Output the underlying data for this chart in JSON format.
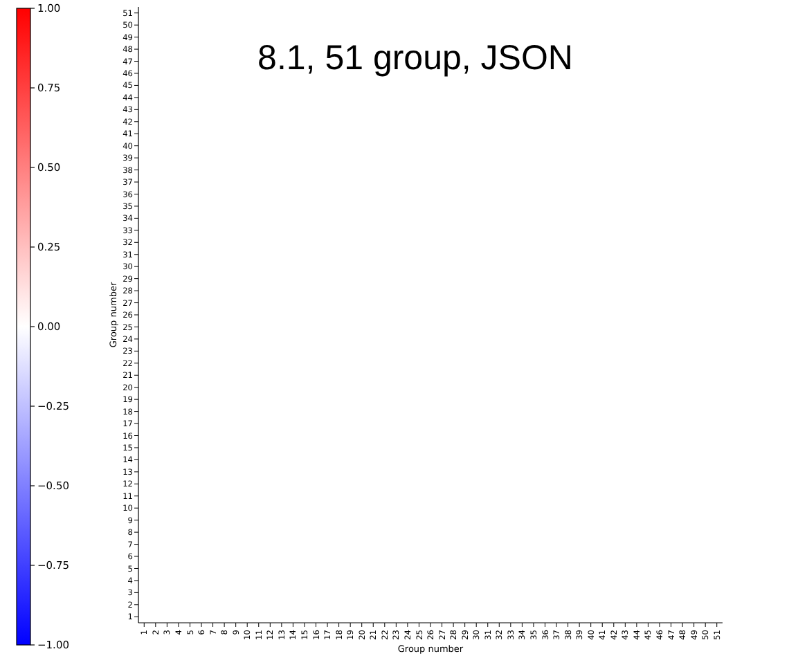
{
  "chart_data": {
    "type": "heatmap",
    "title": "8.1, 51 group, JSON",
    "xlabel": "Group number",
    "ylabel": "Group number",
    "categories": [
      "1",
      "2",
      "3",
      "4",
      "5",
      "6",
      "7",
      "8",
      "9",
      "10",
      "11",
      "12",
      "13",
      "14",
      "15",
      "16",
      "17",
      "18",
      "19",
      "20",
      "21",
      "22",
      "23",
      "24",
      "25",
      "26",
      "27",
      "28",
      "29",
      "30",
      "31",
      "32",
      "33",
      "34",
      "35",
      "36",
      "37",
      "38",
      "39",
      "40",
      "41",
      "42",
      "43",
      "44",
      "45",
      "46",
      "47",
      "48",
      "49",
      "50",
      "51"
    ],
    "y_categories": [
      "51",
      "50",
      "49",
      "48",
      "47",
      "46",
      "45",
      "44",
      "43",
      "42",
      "41",
      "40",
      "39",
      "38",
      "37",
      "36",
      "35",
      "34",
      "33",
      "32",
      "31",
      "30",
      "29",
      "28",
      "27",
      "26",
      "25",
      "24",
      "23",
      "22",
      "21",
      "20",
      "19",
      "18",
      "17",
      "16",
      "15",
      "14",
      "13",
      "12",
      "11",
      "10",
      "9",
      "8",
      "7",
      "6",
      "5",
      "4",
      "3",
      "2",
      "1"
    ],
    "clim": [
      -1,
      1
    ],
    "cticks": [
      {
        "value": 1,
        "label": "1.00"
      },
      {
        "value": 0.75,
        "label": "0.75"
      },
      {
        "value": 0.5,
        "label": "0.50"
      },
      {
        "value": 0.25,
        "label": "0.25"
      },
      {
        "value": 0,
        "label": "0.00"
      },
      {
        "value": -0.25,
        "label": "−0.25"
      },
      {
        "value": -0.5,
        "label": "−0.50"
      },
      {
        "value": -0.75,
        "label": "−0.75"
      },
      {
        "value": -1,
        "label": "−1.00"
      }
    ],
    "cells": [
      [
        0,
        0,
        0,
        0,
        0,
        0,
        0,
        0,
        0,
        0,
        0,
        0,
        0,
        0,
        0,
        0,
        0,
        0,
        0,
        0,
        0,
        0,
        0,
        0,
        0,
        0,
        0,
        0,
        0,
        0,
        0,
        0,
        0,
        0,
        0,
        0,
        0,
        0,
        0,
        0,
        0,
        0,
        0,
        0,
        0,
        0,
        0,
        0,
        0,
        0,
        0
      ],
      [
        0,
        0,
        0,
        0,
        0,
        0,
        0,
        0,
        0,
        0,
        0,
        0,
        0,
        0,
        0,
        0,
        0,
        0,
        0,
        0,
        0,
        0,
        0,
        0,
        0,
        0,
        0,
        0,
        0,
        0,
        0,
        0,
        0,
        0,
        0,
        0,
        0,
        0,
        0,
        0,
        0,
        0,
        0,
        0,
        0,
        0,
        0,
        0,
        0,
        0,
        0
      ],
      [
        0,
        0,
        0,
        0,
        0,
        0,
        0,
        0,
        0,
        0,
        0,
        0,
        0,
        0,
        0,
        0,
        0,
        0,
        0,
        0,
        0,
        0,
        0,
        0,
        0,
        0,
        0,
        0,
        0,
        0,
        0,
        0,
        0,
        0,
        0,
        0,
        0,
        0,
        0,
        0,
        0,
        0,
        0,
        0,
        0,
        0,
        0,
        0,
        0,
        0,
        0
      ],
      [
        0,
        0,
        0,
        0,
        0,
        0,
        0,
        0,
        0,
        0,
        0,
        0,
        0,
        0,
        0,
        0,
        0,
        0,
        0,
        0,
        0,
        0,
        0,
        0,
        0,
        0,
        0,
        0,
        0,
        0,
        0,
        0,
        0,
        0,
        0,
        0,
        0,
        0,
        0,
        0,
        0,
        0,
        0,
        0,
        0,
        0,
        0,
        0,
        0,
        0,
        0
      ],
      [
        0,
        0,
        0,
        0,
        0,
        0,
        0,
        0,
        0,
        0,
        0,
        0,
        0,
        0,
        0,
        0,
        0,
        0,
        0,
        0,
        0,
        0,
        0,
        0,
        0,
        0,
        0,
        0,
        0,
        0,
        0,
        0,
        0,
        0,
        0,
        0,
        0,
        0,
        0,
        0,
        0,
        0,
        0,
        0,
        0,
        0,
        0,
        0,
        0,
        0,
        0
      ],
      [
        0,
        0,
        0,
        0,
        0,
        0,
        0,
        0,
        0,
        0,
        0,
        0,
        0,
        0,
        0,
        0,
        0,
        0,
        0,
        0,
        0,
        0,
        0,
        0,
        0,
        0,
        0,
        0,
        0,
        0,
        0,
        0,
        0,
        0,
        0,
        0,
        0,
        0,
        0,
        0,
        0,
        0,
        0,
        0,
        0,
        0,
        0,
        0,
        0,
        0,
        0
      ],
      [
        0,
        0,
        0,
        0,
        0,
        0,
        0,
        0,
        0,
        0,
        0,
        0,
        0,
        0,
        0,
        0,
        0,
        0,
        0,
        0,
        0,
        0,
        0,
        0,
        0,
        0,
        0,
        0,
        0,
        0,
        0,
        0,
        0,
        0,
        0,
        0,
        0,
        0,
        0,
        0,
        0,
        0,
        0,
        0,
        0,
        0,
        0,
        0,
        0,
        0,
        0
      ],
      [
        0,
        0,
        0,
        0,
        0,
        0,
        0,
        0,
        0,
        0,
        0,
        0,
        0,
        0,
        0,
        0,
        0,
        0,
        0,
        0,
        0,
        0,
        0,
        0,
        0,
        0,
        0,
        0,
        0,
        0,
        0,
        0,
        0,
        0,
        0,
        0,
        0,
        0,
        0,
        0,
        0,
        0,
        0,
        0,
        0,
        0,
        0,
        0,
        0,
        0,
        0
      ],
      [
        0,
        0,
        0,
        0,
        0,
        0,
        0,
        0,
        0,
        0,
        0,
        0,
        0,
        0,
        0,
        0,
        0,
        0,
        0,
        0,
        0,
        0,
        0,
        0,
        0,
        0,
        0,
        0,
        0,
        0,
        0,
        0,
        0,
        0,
        0,
        0,
        0,
        0,
        0,
        0,
        0,
        0,
        0,
        0,
        0,
        0,
        0,
        0,
        0,
        0,
        0
      ],
      [
        0,
        0,
        0,
        0,
        0,
        0,
        0,
        0,
        0,
        0,
        0,
        0,
        0,
        0,
        0,
        0,
        0,
        0,
        0,
        0,
        0,
        0,
        0,
        0,
        0,
        0,
        0,
        0,
        0,
        0,
        0,
        0,
        0,
        0,
        0,
        0,
        0,
        0,
        0,
        0,
        0,
        0,
        0,
        0,
        0,
        0,
        0,
        0,
        0,
        0,
        0
      ],
      [
        0,
        0,
        0,
        0,
        0,
        0,
        0,
        0,
        0,
        0,
        0,
        0,
        0,
        0,
        0,
        0,
        0,
        0,
        0,
        0,
        0,
        0,
        0,
        0,
        0,
        0,
        0,
        0,
        0,
        0,
        0,
        0,
        0,
        0,
        0,
        0,
        0,
        0,
        0,
        0,
        0,
        0,
        0,
        0,
        0,
        0,
        0,
        0,
        0,
        0,
        0
      ],
      [
        0,
        0,
        0,
        0,
        0,
        0,
        0,
        0,
        0,
        0,
        0,
        0,
        0,
        0,
        0,
        0,
        0,
        0,
        0,
        0,
        0,
        0,
        0,
        0,
        0,
        0,
        0,
        0,
        0,
        0,
        0,
        0,
        0,
        0,
        0,
        0,
        0,
        0,
        0,
        0,
        0,
        0,
        0,
        0,
        0,
        0,
        0,
        0,
        0,
        0,
        0
      ],
      [
        0,
        0,
        0,
        0,
        0,
        0,
        0,
        0,
        0,
        0,
        0,
        0,
        0,
        0,
        0,
        0,
        0,
        0,
        0,
        0,
        0,
        0,
        0,
        0,
        0,
        0,
        0,
        0,
        0,
        0,
        0,
        0,
        0,
        0,
        0,
        0,
        0,
        0,
        0,
        0,
        0,
        0,
        0,
        0,
        0,
        0,
        0,
        0,
        0,
        0,
        0
      ],
      [
        0,
        0,
        0,
        0,
        0,
        0,
        0,
        0,
        0,
        0,
        0,
        0,
        0,
        0,
        0,
        0,
        0,
        0,
        0,
        0,
        0,
        0,
        0,
        0,
        0,
        0,
        0,
        0,
        0,
        0,
        0,
        0,
        0,
        0,
        0,
        0,
        0,
        0,
        0,
        0,
        0,
        0,
        0,
        0,
        0,
        0,
        0,
        0,
        0,
        0,
        0
      ],
      [
        0,
        0,
        0,
        0,
        0,
        0,
        0,
        0,
        0,
        0,
        0,
        0,
        0,
        0,
        0,
        0,
        0,
        0,
        0,
        0,
        0,
        0,
        0,
        0,
        0,
        0,
        0,
        0,
        0,
        0,
        0,
        0,
        0,
        0,
        0,
        0,
        0,
        0,
        0,
        0,
        0,
        0,
        0,
        0,
        0,
        0,
        0,
        0,
        0,
        0,
        0
      ],
      [
        0,
        0,
        0,
        0,
        0,
        0,
        0,
        0,
        0,
        0,
        0,
        0,
        0,
        0,
        0,
        0,
        0,
        0,
        0,
        0,
        0,
        0,
        0,
        0,
        0,
        0,
        0,
        0,
        0,
        0,
        0,
        0,
        0,
        0,
        0,
        0,
        0,
        0,
        0,
        0,
        0,
        0,
        0,
        0,
        0,
        0,
        0,
        0,
        0,
        0,
        0
      ],
      [
        0,
        0,
        0,
        0,
        0,
        0,
        0,
        0,
        0,
        0,
        0,
        0,
        0,
        0,
        0,
        0,
        0,
        0,
        0,
        0,
        0,
        0,
        0,
        0,
        0,
        0,
        0,
        0,
        0,
        0,
        0,
        0,
        0,
        0,
        0,
        0,
        0,
        0,
        0,
        0,
        0,
        0,
        0,
        0,
        0,
        0,
        0,
        0,
        0,
        0,
        0
      ],
      [
        0,
        0,
        0,
        0,
        0,
        0,
        0,
        0,
        0,
        0,
        0,
        0,
        0,
        0,
        0,
        0,
        0,
        0,
        0,
        0,
        0,
        0,
        0,
        0,
        0,
        0,
        0,
        0,
        0,
        0,
        0,
        0,
        0,
        0,
        0,
        0,
        0,
        0,
        0,
        0,
        0,
        0,
        0,
        0,
        0,
        0,
        0,
        0,
        0,
        0,
        0
      ],
      [
        0,
        0,
        0,
        0,
        0,
        0,
        0,
        0,
        0,
        0,
        0,
        0,
        0,
        0,
        0,
        0,
        0,
        0,
        0,
        0,
        0,
        0,
        0,
        0,
        0,
        0,
        0,
        0,
        0,
        0,
        0,
        0,
        0,
        0,
        0,
        0,
        0,
        0,
        0,
        0,
        0,
        0,
        0,
        0,
        0,
        0,
        0,
        0,
        0,
        0,
        0
      ],
      [
        0,
        0,
        0,
        0,
        0,
        0,
        0,
        0,
        0,
        0,
        0,
        0,
        0,
        0,
        0,
        0,
        0,
        0,
        0,
        0,
        0,
        0,
        0,
        0,
        0,
        0,
        0,
        0,
        0,
        0,
        0,
        0,
        0,
        0,
        0,
        0,
        0,
        0,
        0,
        0,
        0,
        0,
        0,
        0,
        0,
        0,
        0,
        0,
        0,
        0,
        0
      ],
      [
        0,
        0,
        0,
        0,
        0,
        0,
        0,
        0,
        0,
        0,
        0,
        0,
        0,
        0,
        0,
        0,
        0,
        0,
        0,
        0,
        0,
        0,
        0,
        0,
        0,
        0,
        0,
        0,
        0,
        0,
        0,
        0,
        0,
        0,
        0,
        0,
        0,
        0,
        0,
        0,
        0,
        0,
        0,
        0,
        0,
        0,
        0,
        0,
        0,
        0,
        0
      ],
      [
        0,
        0,
        0,
        0,
        0,
        0,
        0,
        0,
        0,
        0,
        0,
        0,
        0,
        0,
        0,
        0,
        0,
        0,
        0,
        0,
        0,
        0,
        0,
        0,
        0,
        0,
        0,
        0,
        0,
        0,
        0,
        0,
        0,
        0,
        0,
        0,
        0,
        0,
        0,
        0,
        0,
        0,
        0,
        0,
        0,
        0,
        0,
        0,
        0,
        0,
        0
      ],
      [
        0,
        0,
        0,
        0,
        0,
        0,
        0,
        0,
        0,
        0,
        0,
        0,
        0,
        0,
        0,
        0,
        0,
        0,
        0,
        0,
        0,
        0,
        0,
        0,
        0,
        0,
        0,
        0,
        0,
        0,
        0,
        0,
        0,
        0,
        0,
        0,
        0,
        0,
        0,
        0,
        0,
        0,
        0,
        0,
        0,
        0,
        0,
        0,
        0,
        0,
        0
      ],
      [
        0,
        0,
        0,
        0,
        0,
        0,
        0,
        0,
        0,
        0,
        0,
        0,
        0,
        0,
        0,
        0,
        0,
        0,
        0,
        0,
        0,
        0,
        0,
        0,
        0,
        0,
        0,
        0,
        0,
        0,
        0,
        0,
        0,
        0,
        0,
        0,
        0,
        0,
        0,
        0,
        0,
        0,
        0,
        0,
        0,
        0,
        0,
        0,
        0,
        0,
        0
      ],
      [
        0,
        0,
        0,
        0,
        0,
        0,
        0,
        0,
        0,
        0,
        0,
        0,
        0,
        0,
        0,
        0,
        0,
        0,
        0,
        0,
        0,
        0,
        0,
        0,
        0,
        0,
        0,
        0,
        0,
        0,
        0,
        0,
        0,
        0,
        0,
        0,
        0,
        0,
        0,
        0,
        0,
        0,
        0,
        0,
        0,
        0,
        0,
        0,
        0,
        0,
        0
      ],
      [
        0,
        0,
        0,
        0,
        0,
        0,
        0,
        0,
        0,
        0,
        0,
        0,
        0,
        0,
        0,
        0,
        0,
        0,
        0,
        0,
        0,
        0,
        0,
        0,
        0,
        0,
        0,
        0,
        0,
        0,
        0,
        0,
        0,
        0,
        0,
        0,
        0,
        0,
        0,
        0,
        0,
        0,
        0,
        0,
        0,
        0,
        0,
        0,
        0,
        0,
        0
      ],
      [
        0,
        0,
        0,
        0,
        0,
        0,
        0,
        0,
        0,
        0,
        0,
        0,
        0,
        0,
        0,
        0,
        0,
        0,
        0,
        0,
        0,
        0,
        0,
        0,
        0,
        0,
        0,
        0,
        0,
        0,
        0,
        0,
        0,
        0,
        0,
        0,
        0,
        0,
        0,
        0,
        0,
        0,
        0,
        0,
        0,
        0,
        0,
        0,
        0,
        0,
        0
      ],
      [
        0,
        0,
        0,
        0,
        0,
        0,
        0,
        0,
        0,
        0,
        0,
        0,
        0,
        0,
        0,
        0,
        0,
        0,
        0,
        0,
        0,
        0,
        0,
        0,
        0,
        0,
        0,
        0,
        0,
        0,
        0,
        0,
        0,
        0,
        0,
        0,
        0,
        0,
        0,
        0,
        0,
        0,
        0,
        0,
        0,
        0,
        0,
        0,
        0,
        0,
        0
      ],
      [
        0,
        0,
        0,
        0,
        0,
        0,
        0,
        0,
        0,
        0,
        0,
        0,
        0,
        0,
        0,
        0,
        0,
        0,
        0,
        0,
        0,
        0,
        0,
        0,
        0,
        0,
        0,
        0,
        0,
        0,
        0,
        0,
        0,
        0,
        0,
        0,
        0,
        0,
        0,
        0,
        0,
        0,
        0,
        0,
        0,
        0,
        0,
        0,
        0,
        0,
        0
      ],
      [
        0,
        0,
        0,
        0,
        0,
        0,
        0,
        0,
        0,
        0,
        0,
        0,
        0,
        0,
        0,
        0,
        0,
        0,
        0,
        0,
        0,
        0,
        0,
        0,
        0,
        0,
        0,
        0,
        0,
        0,
        0,
        0,
        0,
        0,
        0,
        0,
        0,
        0,
        0,
        0,
        0,
        0,
        0,
        0,
        0,
        0,
        0,
        0,
        0,
        0,
        0
      ],
      [
        0,
        0,
        0,
        0,
        0,
        0,
        0,
        0,
        0,
        0,
        0,
        0,
        0,
        0,
        0,
        0,
        0,
        0,
        0,
        0,
        0,
        0,
        0,
        0,
        0,
        0,
        0,
        0,
        0,
        0,
        0,
        0,
        0,
        0,
        0,
        0,
        0,
        0,
        0,
        0,
        0,
        0,
        0,
        0,
        0,
        0,
        0,
        0,
        0,
        0,
        0
      ],
      [
        0,
        0,
        0,
        0,
        0,
        0,
        0,
        0,
        0,
        0,
        0,
        0,
        0,
        0,
        0,
        0,
        0,
        0,
        0,
        0,
        0,
        0,
        0,
        0,
        0,
        0,
        0,
        0,
        0,
        0,
        0,
        0,
        0,
        0,
        0,
        0,
        0,
        0,
        0,
        0,
        0,
        0,
        0,
        0,
        0,
        0,
        0,
        0,
        0,
        0,
        0
      ],
      [
        0,
        0,
        0,
        0,
        0,
        0,
        0,
        0,
        0,
        0,
        0,
        0,
        0,
        0,
        0,
        0,
        0,
        0,
        0,
        0,
        0,
        0,
        0,
        0,
        0,
        0,
        0,
        0,
        0,
        0,
        0,
        0,
        0,
        0,
        0,
        0,
        0,
        0,
        0,
        0,
        0,
        0,
        0,
        0,
        0,
        0,
        0,
        0,
        0,
        0,
        0
      ],
      [
        0,
        0,
        0,
        0,
        0,
        0,
        0,
        0,
        0,
        0,
        0,
        0,
        0,
        0,
        0,
        0,
        0,
        0,
        0,
        0,
        0,
        0,
        0,
        0,
        0,
        0,
        0,
        0,
        0,
        0,
        0,
        0,
        0,
        0,
        0,
        0,
        0,
        0,
        0,
        0,
        0,
        0,
        0,
        0,
        0,
        0,
        0,
        0,
        0,
        0,
        0
      ],
      [
        0,
        0,
        0,
        0,
        0,
        0,
        0,
        0,
        0,
        0,
        0,
        0,
        0,
        0,
        0,
        0,
        0,
        0,
        0,
        0,
        0,
        0,
        0,
        0,
        0,
        0,
        0,
        0,
        0,
        0,
        0,
        0,
        0,
        0,
        0,
        0,
        0,
        0,
        0,
        0,
        0,
        0,
        0,
        0,
        0,
        0,
        0,
        0,
        0,
        0,
        0
      ],
      [
        0,
        0,
        0,
        0,
        0,
        0,
        0,
        0,
        0,
        0,
        0,
        0,
        0,
        0,
        0,
        0,
        0,
        0,
        0,
        0,
        0,
        0,
        0,
        0,
        0,
        0,
        0,
        0,
        0,
        0,
        0,
        0,
        0,
        0,
        0,
        0,
        0,
        0,
        0,
        0,
        0,
        0,
        0,
        0,
        0,
        0,
        0,
        0,
        0,
        0,
        0
      ],
      [
        0,
        0,
        0,
        0,
        0,
        0,
        0,
        0,
        0,
        0,
        0,
        0,
        0,
        0,
        0,
        0,
        0,
        0,
        0,
        0,
        0,
        0,
        0,
        0,
        0,
        0,
        0,
        0,
        0,
        0,
        0,
        0,
        0,
        0,
        0,
        0,
        0,
        0,
        0,
        0,
        0,
        0,
        0,
        0,
        0,
        0,
        0,
        0,
        0,
        0,
        0
      ],
      [
        0,
        0,
        0,
        0,
        0,
        0,
        0,
        0,
        0,
        0,
        0,
        0,
        0,
        0,
        0,
        0,
        0,
        0,
        0,
        0,
        0,
        0,
        0,
        0,
        0,
        0,
        0,
        0,
        0,
        0,
        0,
        0,
        0,
        0,
        0,
        0,
        0,
        0,
        0,
        0,
        0,
        0,
        0,
        0,
        0,
        0,
        0,
        0,
        0,
        0,
        0
      ],
      [
        0,
        0,
        0,
        0,
        0,
        0,
        0,
        0,
        0,
        0,
        0,
        0,
        0,
        0,
        0,
        0,
        0,
        0,
        0,
        0,
        0,
        0,
        0,
        0,
        0,
        0,
        0,
        0,
        0,
        0,
        0,
        0,
        0,
        0,
        0,
        0,
        0,
        0,
        0,
        0,
        0,
        0,
        0,
        0,
        0,
        0,
        0,
        0,
        0,
        0,
        0
      ],
      [
        0,
        0,
        0,
        0,
        0,
        0,
        0,
        0,
        0,
        0,
        0,
        0,
        0,
        0,
        0,
        0,
        0,
        0,
        0,
        0,
        0,
        0,
        0,
        0,
        0,
        0,
        0,
        0,
        0,
        0,
        0,
        0,
        0,
        0,
        0,
        0,
        0,
        0,
        0,
        0,
        0,
        0,
        0,
        0,
        0,
        0,
        0,
        0,
        0,
        0,
        0
      ],
      [
        0,
        0,
        0,
        0,
        0,
        0,
        0,
        0,
        0,
        0,
        0,
        0,
        0,
        0,
        0,
        0,
        0,
        0,
        0,
        0,
        0,
        0,
        0,
        0,
        0,
        0,
        0,
        0,
        0,
        0,
        0,
        0,
        0,
        0,
        0,
        0,
        0,
        0,
        0,
        0,
        0,
        0,
        0,
        0,
        0,
        0,
        0,
        0,
        0,
        0,
        0
      ],
      [
        0,
        0,
        0,
        0,
        0,
        0,
        0,
        0,
        0,
        0,
        0,
        0,
        0,
        0,
        0,
        0,
        0,
        0,
        0,
        0,
        0,
        0,
        0,
        0,
        0,
        0,
        0,
        0,
        0,
        0,
        0,
        0,
        0,
        0,
        0,
        0,
        0,
        0,
        0,
        0,
        0,
        0,
        0,
        0,
        0,
        0,
        0,
        0,
        0,
        0,
        0
      ],
      [
        0,
        0,
        0,
        0,
        0,
        0,
        0,
        0,
        0,
        0,
        0,
        0,
        0,
        0,
        0,
        0,
        0,
        0,
        0,
        0,
        0,
        0,
        0,
        0,
        0,
        0,
        0,
        0,
        0,
        0,
        0,
        0,
        0,
        0,
        0,
        0,
        0,
        0,
        0,
        0,
        0,
        0,
        0,
        0,
        0,
        0,
        0,
        0,
        0,
        0,
        0
      ],
      [
        0,
        0,
        0,
        0,
        0,
        0,
        0,
        0,
        0,
        0,
        0,
        0,
        0,
        0,
        0,
        0,
        0,
        0,
        0,
        0,
        0,
        0,
        0,
        0,
        0,
        0,
        0,
        0,
        0,
        0,
        0,
        0,
        0,
        0,
        0,
        0,
        0,
        0,
        0,
        0,
        0,
        0,
        0,
        0,
        0,
        0,
        0,
        0,
        0,
        0,
        0
      ],
      [
        0,
        0,
        0,
        0,
        0,
        0,
        0,
        0,
        0,
        0,
        0,
        0,
        0,
        0,
        0,
        0,
        0,
        0,
        0,
        0,
        0,
        0,
        0,
        0,
        0,
        0,
        0,
        0,
        0,
        0,
        0,
        0,
        0,
        0,
        0,
        0,
        0,
        0,
        0,
        0,
        0,
        0,
        0,
        0,
        0,
        0,
        0,
        0,
        0,
        0,
        0
      ],
      [
        0,
        0,
        0,
        0,
        0,
        0,
        0,
        0,
        0,
        0,
        0,
        0,
        0,
        0,
        0,
        0,
        0,
        0,
        0,
        0,
        0,
        0,
        0,
        0,
        0,
        0,
        0,
        0,
        0,
        0,
        0,
        0,
        0,
        0,
        0,
        0,
        0,
        0,
        0,
        0,
        0,
        0,
        0,
        0,
        0,
        0,
        0,
        0,
        0,
        0,
        0
      ],
      [
        0,
        0,
        0,
        0,
        0,
        0,
        0,
        0,
        0,
        0,
        0,
        0,
        0,
        0,
        0,
        0,
        0,
        0,
        0,
        0,
        0,
        0,
        0,
        0,
        0,
        0,
        0,
        0,
        0,
        0,
        0,
        0,
        0,
        0,
        0,
        0,
        0,
        0,
        0,
        0,
        0,
        0,
        0,
        0,
        0,
        0,
        0,
        0,
        0,
        0,
        0
      ],
      [
        0,
        0,
        0,
        0,
        0,
        0,
        0,
        0,
        0,
        0,
        0,
        0,
        0,
        0,
        0,
        0,
        0,
        0,
        0,
        0,
        0,
        0,
        0,
        0,
        0,
        0,
        0,
        0,
        0,
        0,
        0,
        0,
        0,
        0,
        0,
        0,
        0,
        0,
        0,
        0,
        0,
        0,
        0,
        0,
        0,
        0,
        0,
        0,
        0,
        0,
        0
      ],
      [
        0,
        0,
        0,
        0,
        0,
        0,
        0,
        0,
        0,
        0,
        0,
        0,
        0,
        0,
        0,
        0,
        0,
        0,
        0,
        0,
        0,
        0,
        0,
        0,
        0,
        0,
        0,
        0,
        0,
        0,
        0,
        0,
        0,
        0,
        0,
        0,
        0,
        0,
        0,
        0,
        0,
        0,
        0,
        0,
        0,
        0,
        0,
        0,
        0,
        0,
        0
      ],
      [
        0,
        0,
        0,
        0,
        0,
        0,
        0,
        0,
        0,
        0,
        0,
        0,
        0,
        0,
        0,
        0,
        0,
        0,
        0,
        0,
        0,
        0,
        0,
        0,
        0,
        0,
        0,
        0,
        0,
        0,
        0,
        0,
        0,
        0,
        0,
        0,
        0,
        0,
        0,
        0,
        0,
        0,
        0,
        0,
        0,
        0,
        0,
        0,
        0,
        0,
        0
      ],
      [
        0,
        0,
        0,
        0,
        0,
        0,
        0,
        0,
        0,
        0,
        0,
        0,
        0,
        0,
        0,
        0,
        0,
        0,
        0,
        0,
        0,
        0,
        0,
        0,
        0,
        0,
        0,
        0,
        0,
        0,
        0,
        0,
        0,
        0,
        0,
        0,
        0,
        0,
        0,
        0,
        0,
        0,
        0,
        0,
        0,
        0,
        0,
        0,
        0,
        0,
        0
      ]
    ]
  }
}
